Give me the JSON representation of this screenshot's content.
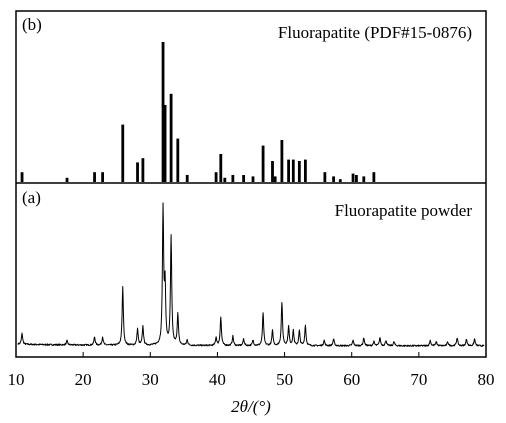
{
  "chart_data": [
    {
      "panel_label": "(b)",
      "title": "Fluorapatite (PDF#15-0876)",
      "type": "bar",
      "xlim": [
        10,
        80
      ],
      "ylim": [
        0,
        100
      ],
      "x": [
        10.9,
        17.6,
        21.7,
        22.9,
        25.9,
        28.1,
        28.9,
        31.9,
        32.2,
        33.1,
        34.1,
        35.5,
        39.8,
        40.5,
        41.1,
        42.3,
        43.9,
        45.3,
        46.8,
        48.2,
        48.6,
        49.6,
        50.6,
        51.3,
        52.2,
        53.1,
        56.0,
        57.3,
        58.3,
        60.2,
        60.7,
        61.8,
        63.3
      ],
      "values": [
        7,
        3,
        7,
        7,
        41,
        14,
        17,
        100,
        55,
        63,
        31,
        5,
        7,
        20,
        3,
        5,
        5,
        4,
        26,
        15,
        4,
        30,
        16,
        16,
        15,
        16,
        7,
        4,
        2,
        6,
        5,
        4,
        7
      ]
    },
    {
      "panel_label": "(a)",
      "title": "Fluorapatite powder",
      "type": "line",
      "xlabel": "2θ/(°)",
      "xlim": [
        10,
        80
      ],
      "x_ticks": [
        10,
        20,
        30,
        40,
        50,
        60,
        70,
        80
      ],
      "peaks": {
        "x": [
          10.9,
          17.6,
          21.7,
          22.9,
          25.9,
          28.1,
          28.9,
          31.9,
          32.2,
          33.1,
          34.1,
          35.5,
          39.8,
          40.5,
          42.3,
          43.9,
          45.3,
          46.8,
          48.2,
          49.6,
          50.6,
          51.3,
          52.2,
          53.1,
          55.9,
          57.3,
          60.2,
          61.8,
          63.3,
          64.2,
          65.1,
          66.3,
          71.7,
          72.6,
          74.3,
          75.7,
          77.1,
          78.3
        ],
        "y": [
          8,
          3,
          6,
          6,
          43,
          12,
          14,
          100,
          42,
          80,
          23,
          4,
          6,
          21,
          7,
          5,
          4,
          24,
          11,
          32,
          14,
          11,
          11,
          15,
          4,
          5,
          4,
          6,
          3,
          6,
          4,
          3,
          4,
          3,
          3,
          6,
          5,
          5
        ]
      }
    }
  ]
}
